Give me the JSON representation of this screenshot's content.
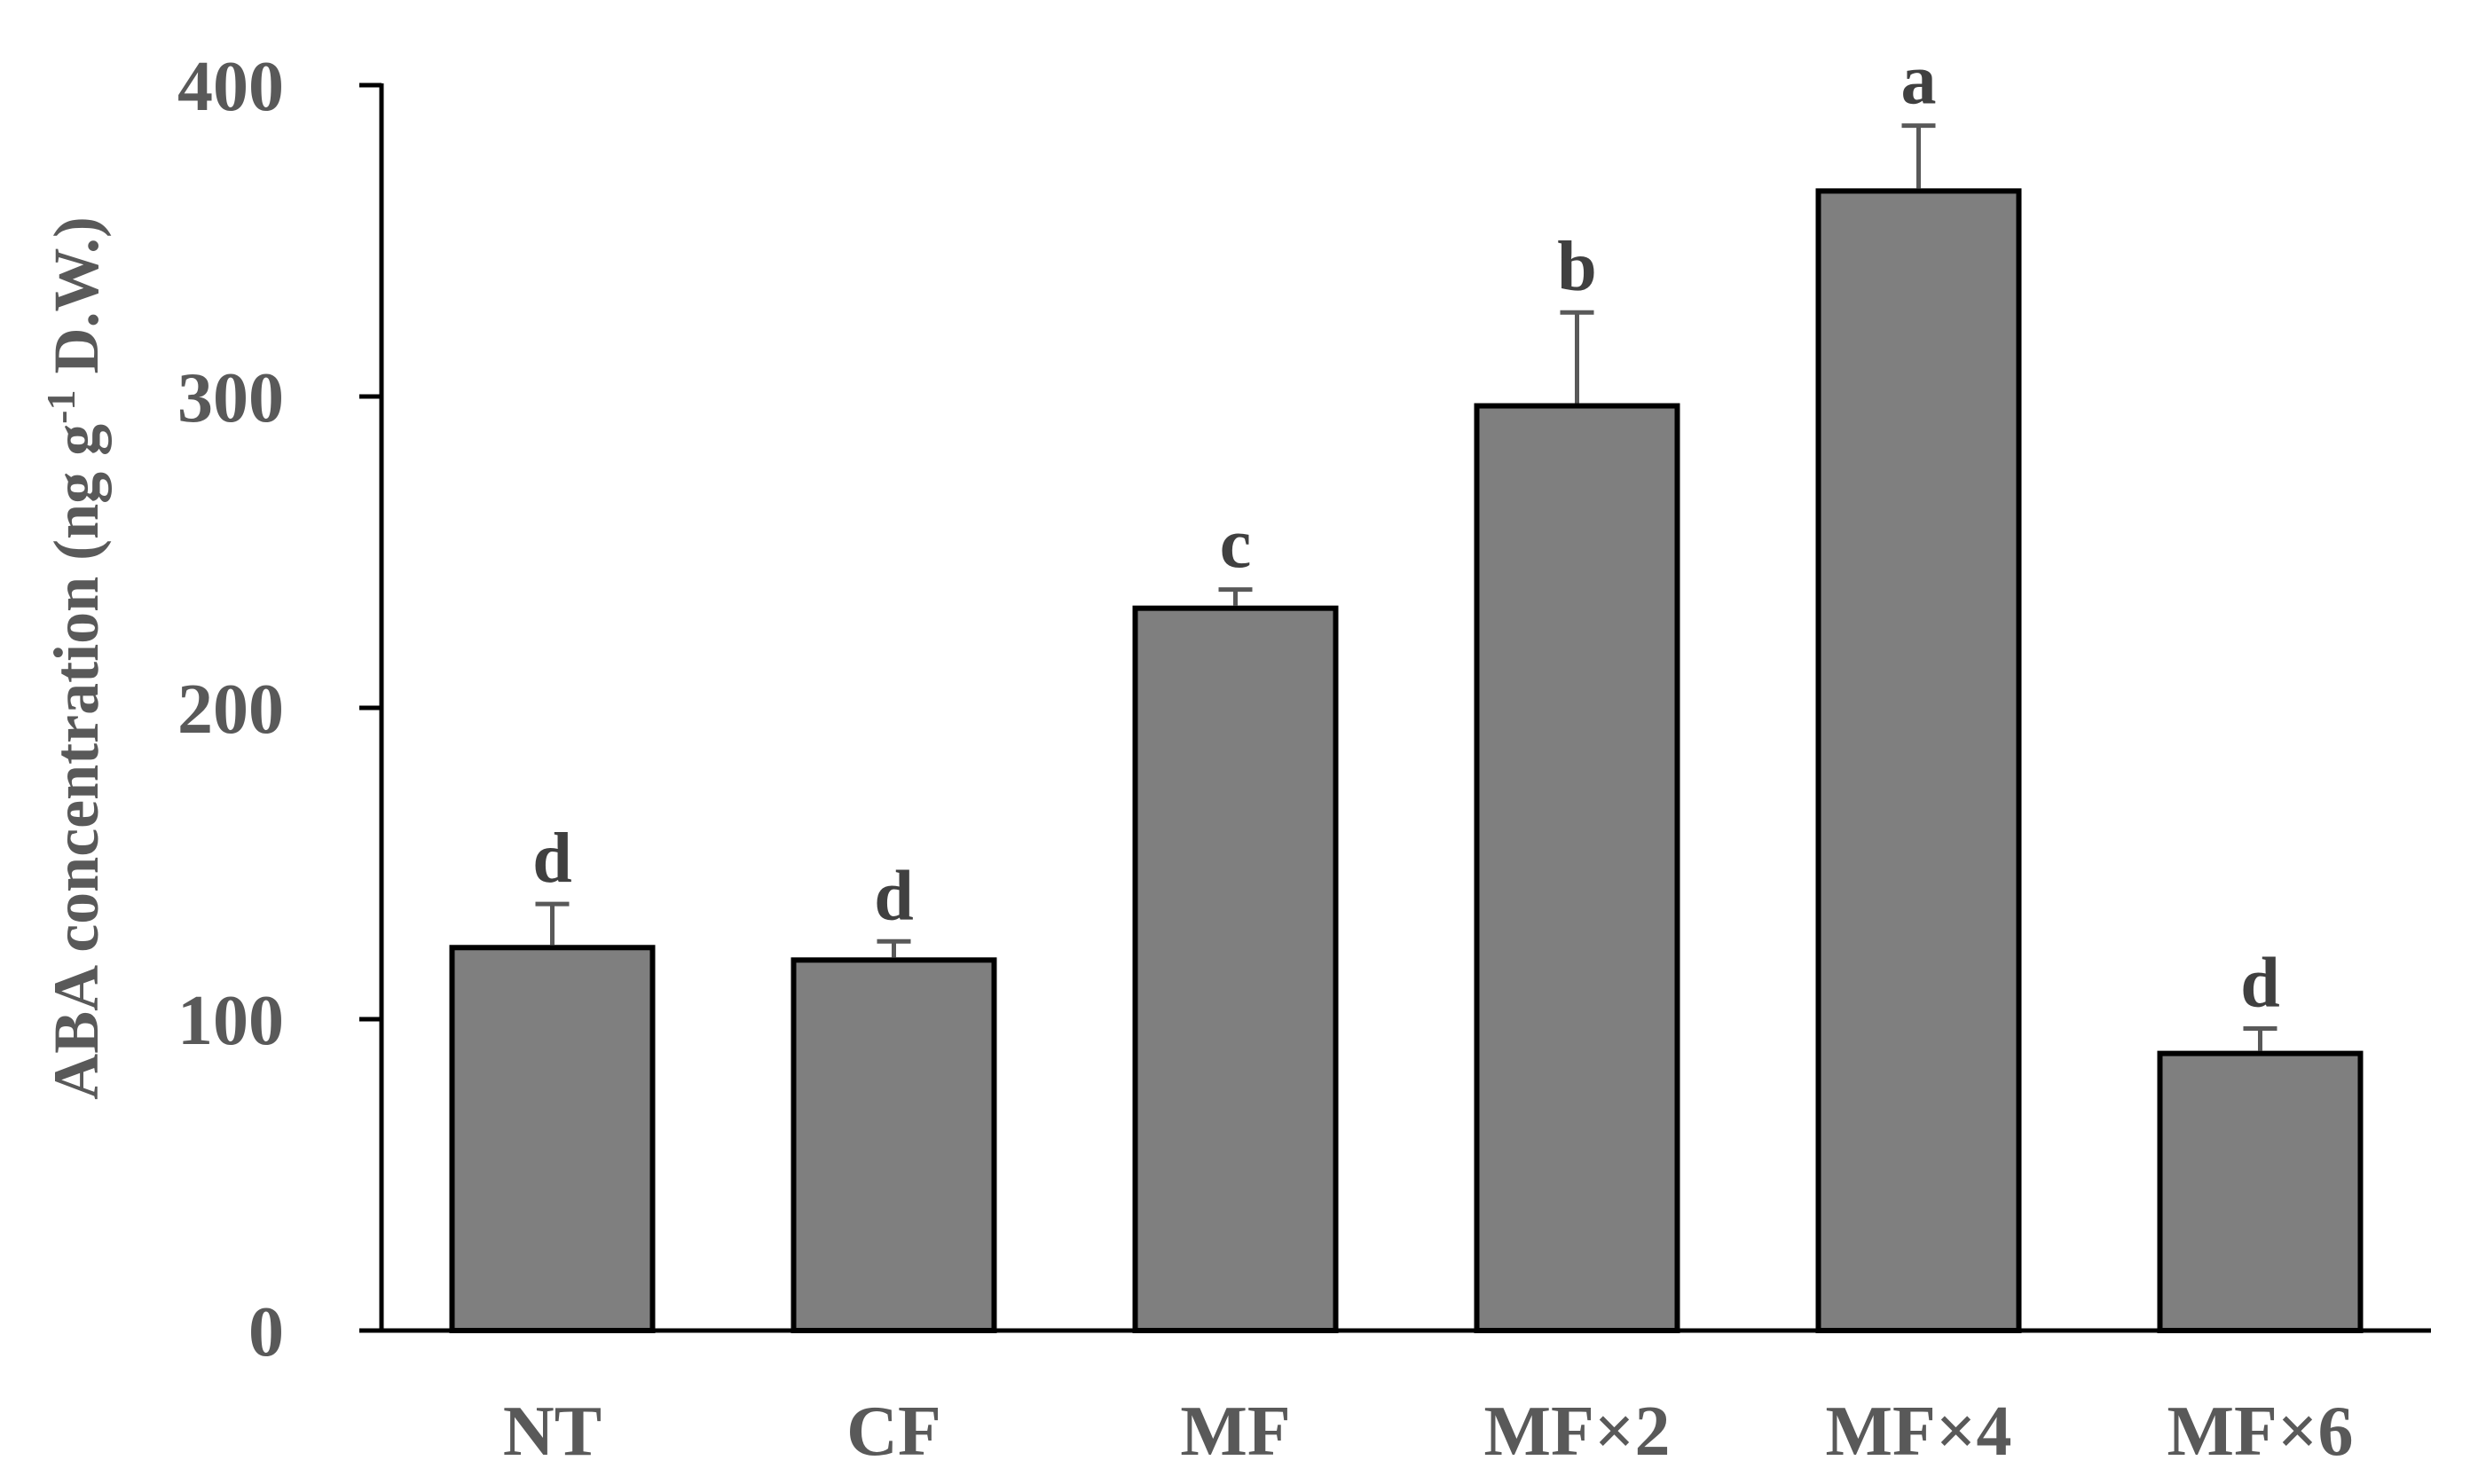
{
  "chart_data": {
    "type": "bar",
    "categories": [
      "NT",
      "CF",
      "MF",
      "MF×2",
      "MF×4",
      "MF×6"
    ],
    "values": [
      123,
      119,
      232,
      297,
      366,
      89
    ],
    "errors": [
      14,
      6,
      6,
      30,
      21,
      8
    ],
    "significance": [
      "d",
      "d",
      "c",
      "b",
      "a",
      "d"
    ],
    "ylabel": {
      "main": "ABA concentration (ng g",
      "superscript": "-1",
      "tail": " D.W.)"
    },
    "yticks": [
      "0",
      "100",
      "200",
      "300",
      "400"
    ],
    "ylim": [
      0,
      400
    ],
    "grid": false,
    "legend": "none",
    "colors": {
      "bar_fill": "#7f7f7f",
      "bar_stroke": "#000000",
      "error_bar": "#595959",
      "axis": "#000000"
    }
  }
}
